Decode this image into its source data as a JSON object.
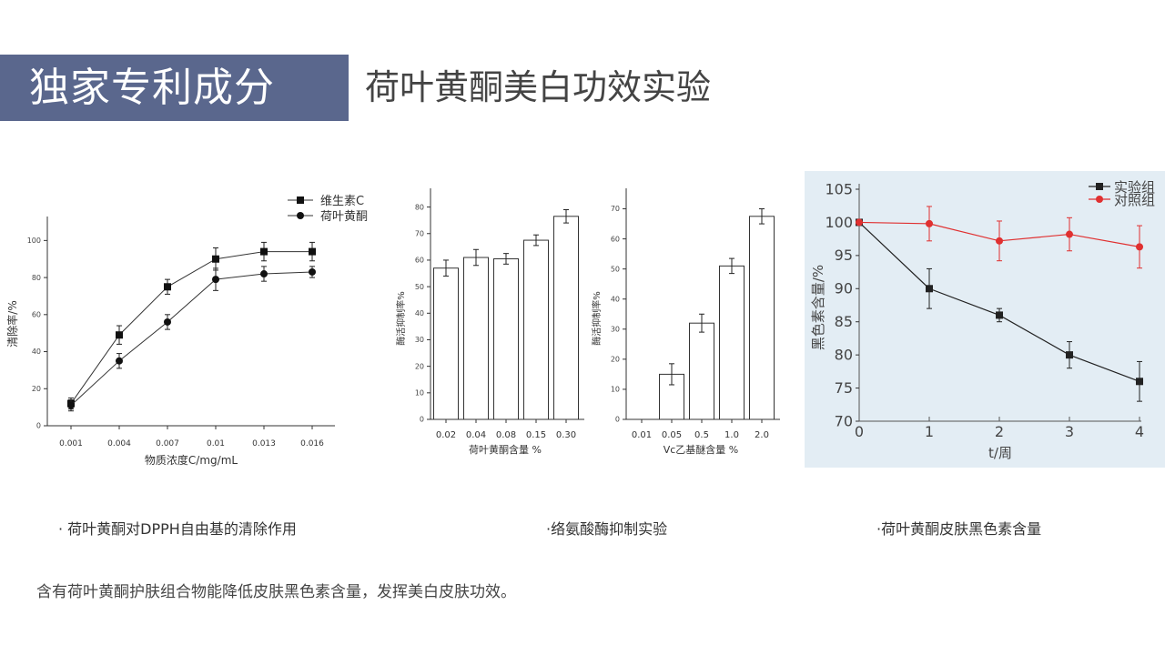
{
  "header": {
    "badge": "独家专利成分",
    "title": "荷叶黄酮美白功效实验",
    "badge_color": "#5a678d"
  },
  "captions": [
    "· 荷叶黄酮对DPPH自由基的清除作用",
    "·络氨酸酶抑制实验",
    "·荷叶黄酮皮肤黑色素含量"
  ],
  "summary": "含有荷叶黄酮护肤组合物能降低皮肤黑色素含量，发挥美白皮肤功效。",
  "chart_data": [
    {
      "type": "line",
      "title": "",
      "xlabel": "物质浓度C/mg/mL",
      "ylabel": "清除率/%",
      "categories": [
        "0.001",
        "0.004",
        "0.007",
        "0.01",
        "0.013",
        "0.016"
      ],
      "ylim": [
        0,
        110
      ],
      "yticks": [
        0,
        20,
        40,
        60,
        80,
        100
      ],
      "legend_position": "top-right",
      "series": [
        {
          "name": "维生素C",
          "marker": "square",
          "values": [
            12,
            49,
            75,
            90,
            94,
            94
          ],
          "errors": [
            3,
            5,
            4,
            6,
            5,
            5
          ]
        },
        {
          "name": "荷叶黄酮",
          "marker": "circle",
          "values": [
            11,
            35,
            56,
            79,
            82,
            83
          ],
          "errors": [
            3,
            4,
            4,
            6,
            4,
            3
          ]
        }
      ]
    },
    {
      "type": "bar",
      "xlabel": "荷叶黄酮含量 %",
      "ylabel": "酶活抑制率%",
      "categories": [
        "0.02",
        "0.04",
        "0.08",
        "0.15",
        "0.30"
      ],
      "values": [
        57,
        61,
        60.5,
        67.5,
        76.5
      ],
      "errors": [
        3,
        3,
        2,
        2,
        2.5
      ],
      "ylim": [
        0,
        85
      ],
      "yticks": [
        0,
        10,
        20,
        30,
        40,
        50,
        60,
        70,
        80
      ]
    },
    {
      "type": "bar",
      "xlabel": "Vc乙基醚含量 %",
      "ylabel": "酶活抑制率%",
      "categories": [
        "0.01",
        "0.05",
        "0.5",
        "1.0",
        "2.0"
      ],
      "values": [
        0,
        15,
        32,
        51,
        67.5
      ],
      "errors": [
        0,
        3.5,
        3,
        2.5,
        2.5
      ],
      "ylim": [
        0,
        75
      ],
      "yticks": [
        0,
        10,
        20,
        30,
        40,
        50,
        60,
        70
      ]
    },
    {
      "type": "line",
      "xlabel": "t/周",
      "ylabel": "黑色素含量/%",
      "categories": [
        "0",
        "1",
        "2",
        "3",
        "4"
      ],
      "ylim": [
        70,
        105
      ],
      "yticks": [
        70,
        75,
        80,
        85,
        90,
        95,
        100,
        105
      ],
      "legend_position": "top-right",
      "background": "#e3edf4",
      "series": [
        {
          "name": "实验组",
          "color": "#222222",
          "marker": "square",
          "values": [
            100,
            90,
            86,
            80,
            76
          ],
          "errors": [
            0,
            3,
            1,
            2,
            3
          ]
        },
        {
          "name": "对照组",
          "color": "#e03030",
          "marker": "circle",
          "values": [
            100,
            99.8,
            97.2,
            98.2,
            96.3
          ],
          "errors": [
            0,
            2.6,
            3,
            2.5,
            3.2
          ]
        }
      ]
    }
  ]
}
